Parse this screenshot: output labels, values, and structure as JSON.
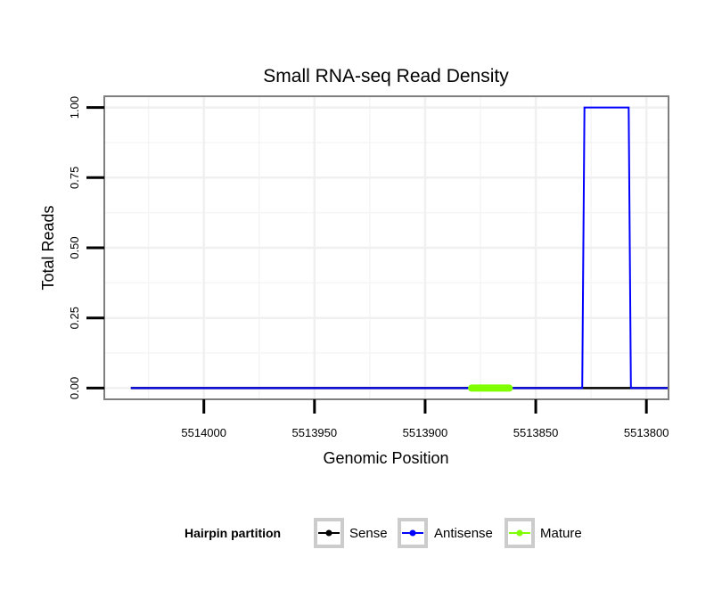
{
  "chart_data": {
    "type": "line",
    "title": "Small RNA-seq Read Density",
    "xlabel": "Genomic Position",
    "ylabel": "Total Reads",
    "x_reversed": true,
    "xlim": [
      5514045,
      5513790
    ],
    "ylim": [
      -0.04,
      1.04
    ],
    "x_ticks": [
      5514000,
      5513950,
      5513900,
      5513850,
      5513800
    ],
    "x_tick_labels": [
      "5514000",
      "5513950",
      "5513900",
      "5513850",
      "5513800"
    ],
    "y_ticks": [
      0,
      0.25,
      0.5,
      0.75,
      1
    ],
    "y_tick_labels": [
      "0.00",
      "0.25",
      "0.50",
      "0.75",
      "1.00"
    ],
    "grid": true,
    "legend": {
      "title": "Hairpin partition",
      "placement": "bottom",
      "entries": [
        "Sense",
        "Antisense",
        "Mature"
      ]
    },
    "series": [
      {
        "name": "Sense",
        "color": "#000000",
        "x": [
          5514033,
          5513790
        ],
        "y": [
          0,
          0
        ]
      },
      {
        "name": "Antisense",
        "color": "#0000ff",
        "x": [
          5514033,
          5513829,
          5513828,
          5513808,
          5513807,
          5513790
        ],
        "y": [
          0,
          0,
          1,
          1,
          0,
          0
        ]
      },
      {
        "name": "Mature",
        "color": "#7fff00",
        "x": [
          5513879,
          5513862
        ],
        "y": [
          0,
          0
        ]
      }
    ]
  }
}
